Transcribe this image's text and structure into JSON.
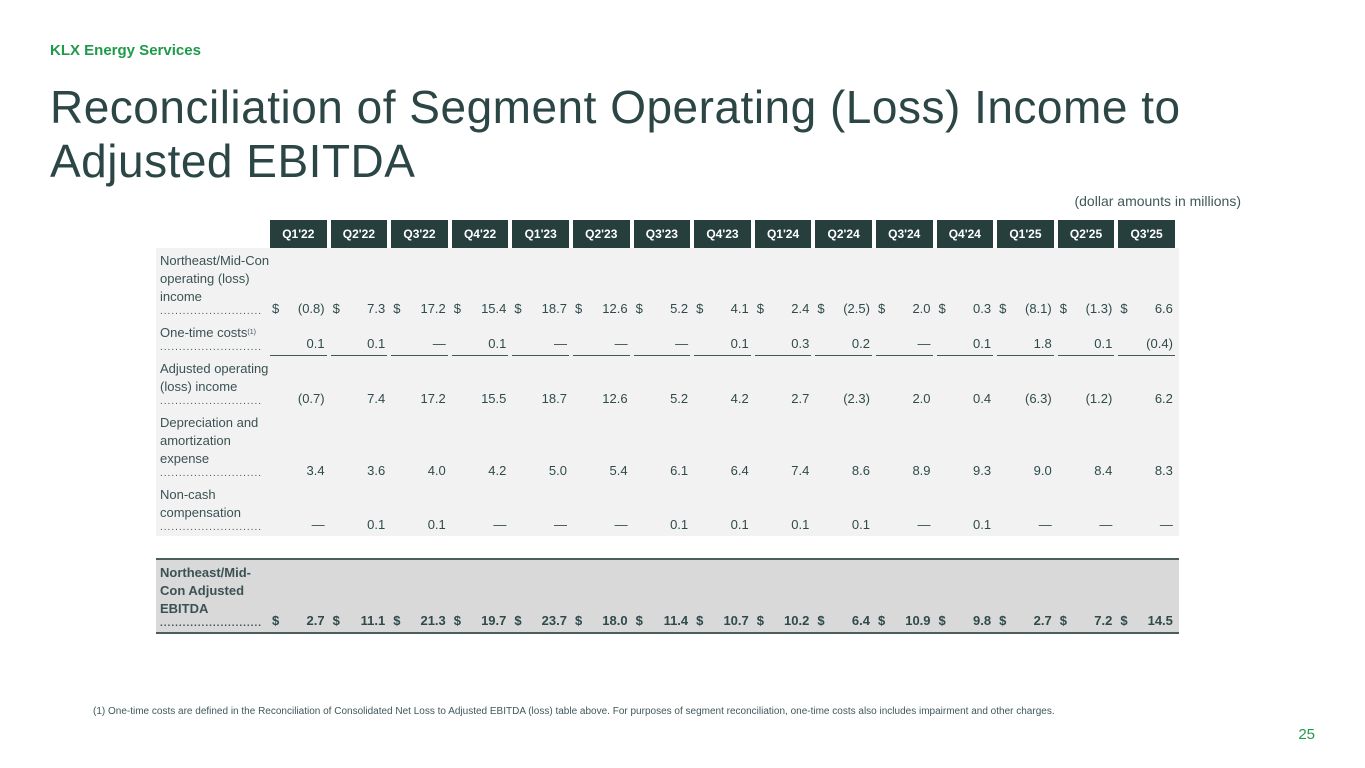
{
  "header": {
    "company": "KLX Energy Services",
    "title": "Reconciliation of Segment Operating (Loss) Income to Adjusted EBITDA",
    "units": "(dollar amounts in millions)"
  },
  "table": {
    "columns": [
      "Q1'22",
      "Q2'22",
      "Q3'22",
      "Q4'22",
      "Q1'23",
      "Q2'23",
      "Q3'23",
      "Q4'23",
      "Q1'24",
      "Q2'24",
      "Q3'24",
      "Q4'24",
      "Q1'25",
      "Q2'25",
      "Q3'25"
    ],
    "dots": "...........................",
    "rows": [
      {
        "label": "Northeast/Mid-Con operating (loss) income",
        "sup": "",
        "dollar": true,
        "underline": false,
        "values": [
          "(0.8)",
          "7.3",
          "17.2",
          "15.4",
          "18.7",
          "12.6",
          "5.2",
          "4.1",
          "2.4",
          "(2.5)",
          "2.0",
          "0.3",
          "(8.1)",
          "(1.3)",
          "6.6"
        ]
      },
      {
        "label": "One-time costs",
        "sup": "(1)",
        "dollar": false,
        "underline": true,
        "values": [
          "0.1",
          "0.1",
          "—",
          "0.1",
          "—",
          "—",
          "—",
          "0.1",
          "0.3",
          "0.2",
          "—",
          "0.1",
          "1.8",
          "0.1",
          "(0.4)"
        ]
      },
      {
        "label": "Adjusted operating (loss) income",
        "sup": "",
        "dollar": false,
        "underline": false,
        "values": [
          "(0.7)",
          "7.4",
          "17.2",
          "15.5",
          "18.7",
          "12.6",
          "5.2",
          "4.2",
          "2.7",
          "(2.3)",
          "2.0",
          "0.4",
          "(6.3)",
          "(1.2)",
          "6.2"
        ]
      },
      {
        "label": "Depreciation and amortization expense",
        "sup": "",
        "dollar": false,
        "underline": false,
        "values": [
          "3.4",
          "3.6",
          "4.0",
          "4.2",
          "5.0",
          "5.4",
          "6.1",
          "6.4",
          "7.4",
          "8.6",
          "8.9",
          "9.3",
          "9.0",
          "8.4",
          "8.3"
        ]
      },
      {
        "label": "Non-cash compensation",
        "sup": "",
        "dollar": false,
        "underline": false,
        "values": [
          "—",
          "0.1",
          "0.1",
          "—",
          "—",
          "—",
          "0.1",
          "0.1",
          "0.1",
          "0.1",
          "—",
          "0.1",
          "—",
          "—",
          "—"
        ]
      }
    ],
    "total": {
      "label": "Northeast/Mid-Con Adjusted EBITDA",
      "dollar": true,
      "values": [
        "2.7",
        "11.1",
        "21.3",
        "19.7",
        "23.7",
        "18.0",
        "11.4",
        "10.7",
        "10.2",
        "6.4",
        "10.9",
        "9.8",
        "2.7",
        "7.2",
        "14.5"
      ]
    },
    "dollar_sign": "$"
  },
  "footnote": "(1) One-time costs are defined in the Reconciliation of Consolidated Net Loss to Adjusted EBITDA (loss) table above. For purposes of segment reconciliation, one-time costs also includes impairment and other charges.",
  "page_number": "25"
}
